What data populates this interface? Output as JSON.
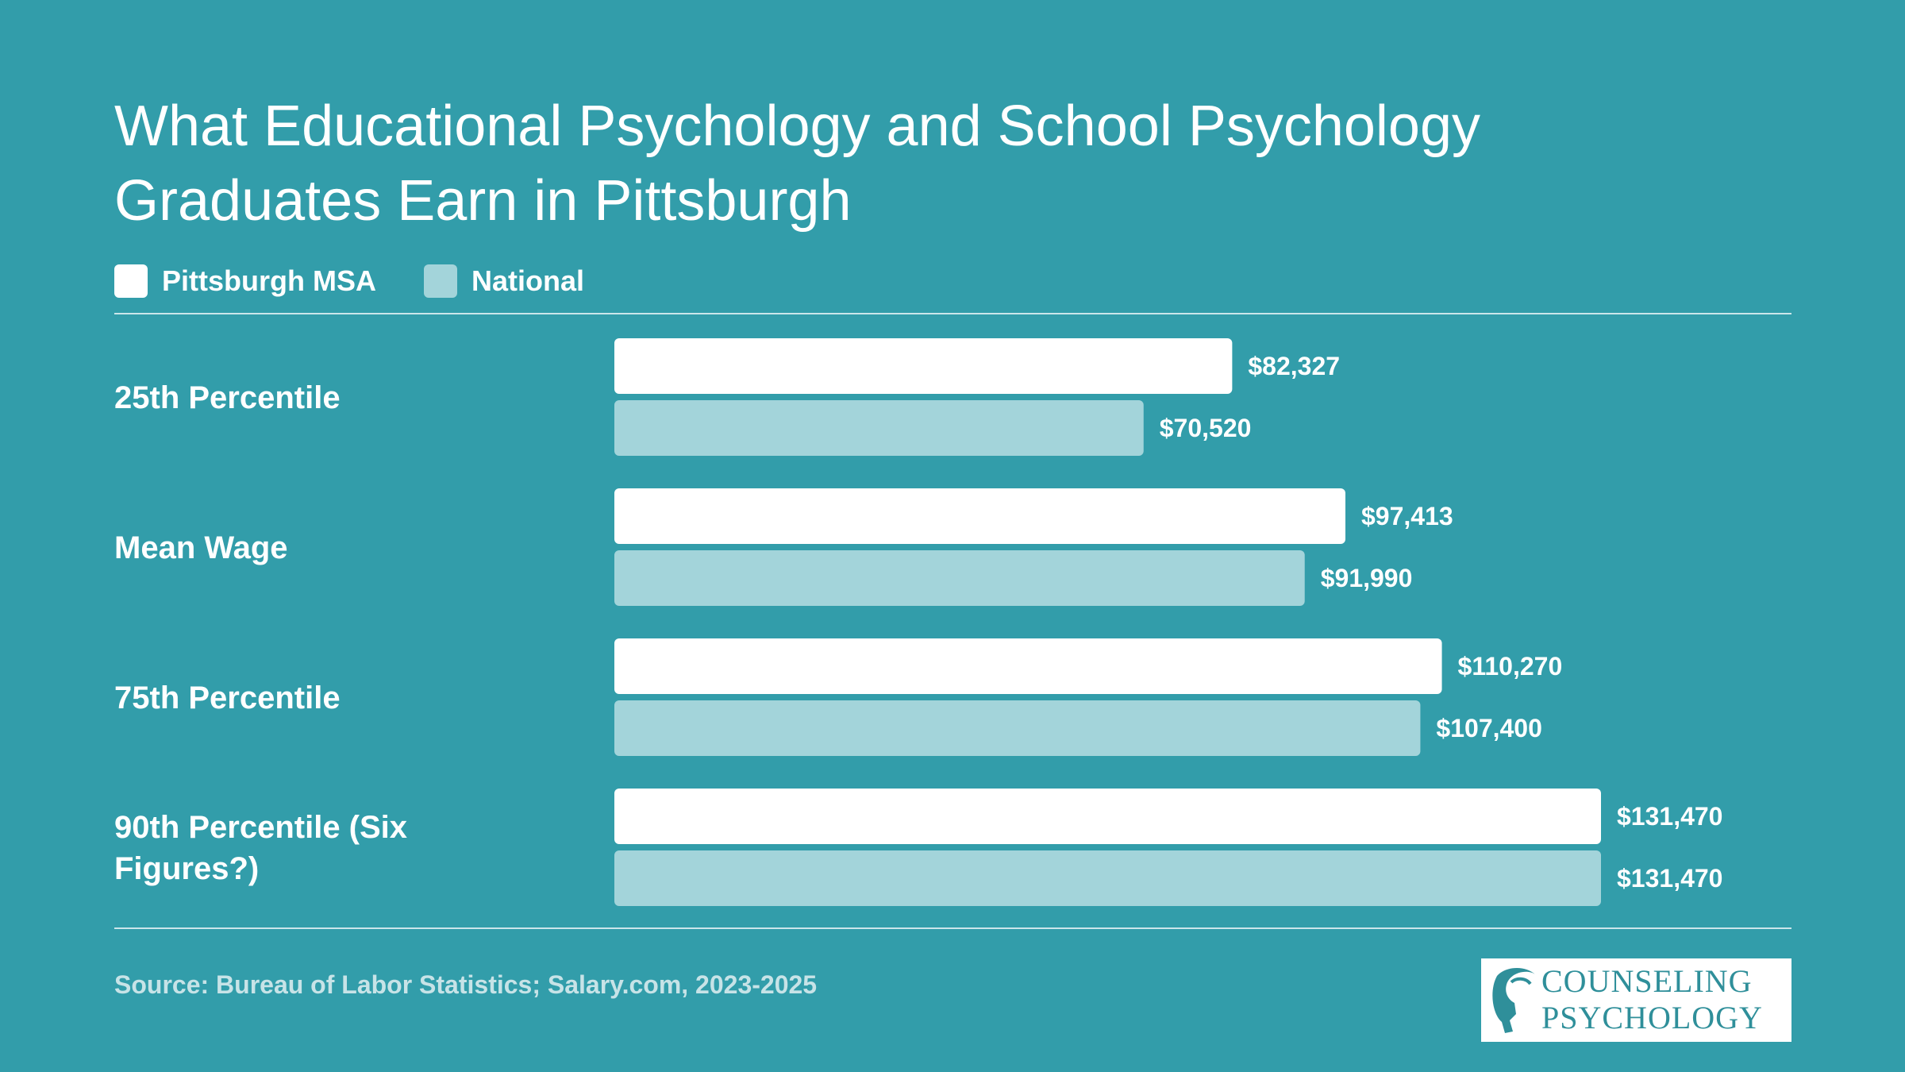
{
  "colors": {
    "background": "#329DAA",
    "pittsburgh": "#FFFFFF",
    "national": "#A3D4DA",
    "text": "#FFFFFF",
    "source_text": "#C7E3E7",
    "logo_teal": "#2F8F9A"
  },
  "title": {
    "line1": "What Educational Psychology and School Psychology",
    "line2": "Graduates Earn in Pittsburgh"
  },
  "legend": [
    {
      "label": "Pittsburgh MSA",
      "color": "#FFFFFF"
    },
    {
      "label": "National",
      "color": "#A3D4DA"
    }
  ],
  "chart_data": {
    "type": "bar",
    "orientation": "horizontal",
    "categories": [
      "25th Percentile",
      "Mean Wage",
      "75th Percentile",
      "90th Percentile (Six Figures?)"
    ],
    "series": [
      {
        "name": "Pittsburgh MSA",
        "color": "#FFFFFF",
        "values": [
          82327,
          97413,
          110270,
          131470
        ],
        "labels": [
          "$82,327",
          "$97,413",
          "$110,270",
          "$131,470"
        ]
      },
      {
        "name": "National",
        "color": "#A3D4DA",
        "values": [
          70520,
          91990,
          107400,
          131470
        ],
        "labels": [
          "$70,520",
          "$91,990",
          "$107,400",
          "$131,470"
        ]
      }
    ],
    "xlim": [
      0,
      131470
    ],
    "grid": false,
    "legend_position": "top-left"
  },
  "source": "Source: Bureau of Labor Statistics; Salary.com, 2023-2025",
  "logo": {
    "line1": "COUNSELING",
    "line2": "PSYCHOLOGY",
    "icon": "head-profile-icon"
  }
}
